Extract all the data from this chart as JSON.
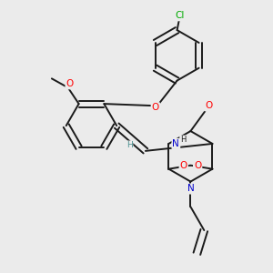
{
  "background_color": "#ebebeb",
  "bond_color": "#1a1a1a",
  "bond_width": 1.4,
  "atom_colors": {
    "O": "#ff0000",
    "N": "#0000cc",
    "Cl": "#00aa00",
    "H": "#4a9090",
    "C": "#1a1a1a"
  },
  "font_size": 7.5,
  "fig_width": 3.0,
  "fig_height": 3.0,
  "dpi": 100
}
